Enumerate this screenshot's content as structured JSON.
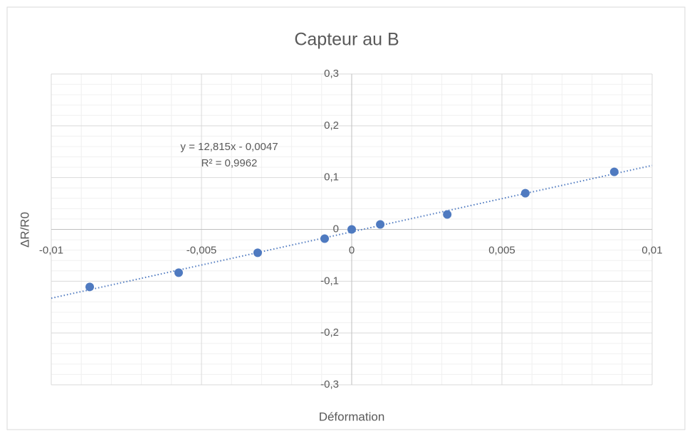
{
  "chart_data": {
    "type": "scatter",
    "title": "Capteur au B",
    "x_label": "Déformation",
    "y_label": "ΔR/R0",
    "x": [
      -0.00872,
      -0.00576,
      -0.00313,
      -0.0009,
      0,
      0.00095,
      0.00318,
      0.00578,
      0.00874
    ],
    "series": [
      {
        "color": "#4f7ac0",
        "values": [
          -0.111,
          -0.0836,
          -0.0452,
          -0.0178,
          0,
          0.0096,
          0.0288,
          0.0699,
          0.111
        ]
      }
    ],
    "trendline": {
      "equation": "y = 12,815x - 0,0047",
      "r_squared": "R² = 0,9962",
      "slope": 12.815,
      "intercept": -0.0047,
      "color": "#4f7ac0"
    },
    "xlim": [
      -0.01,
      0.01
    ],
    "ylim": [
      -0.3,
      0.3
    ],
    "xticks": [
      {
        "value": -0.01,
        "label": "-0,01"
      },
      {
        "value": -0.005,
        "label": "-0,005"
      },
      0,
      {
        "value": 0.005,
        "label": "0,005"
      },
      {
        "value": 0.01,
        "label": "0,01"
      }
    ],
    "yticks": [
      {
        "value": -0.3,
        "label": "-0,3"
      },
      {
        "value": -0.2,
        "label": "-0,2"
      },
      {
        "value": -0.1,
        "label": "-0,1"
      },
      0,
      {
        "value": 0.1,
        "label": "0,1"
      },
      {
        "value": 0.2,
        "label": "0,2"
      },
      {
        "value": 0.3,
        "label": "0,3"
      }
    ],
    "xminorticks": [
      -0.009,
      -0.008,
      -0.007,
      -0.006,
      -0.004,
      -0.003,
      -0.002,
      -0.001,
      0.001,
      0.002,
      0.003,
      0.004,
      0.006,
      0.007,
      0.008,
      0.009
    ],
    "yminorticks": [
      -0.28,
      -0.26,
      -0.24,
      -0.22,
      -0.18,
      -0.16,
      -0.14,
      -0.12,
      -0.08,
      -0.06,
      -0.04,
      -0.02,
      0.02,
      0.04,
      0.06,
      0.08,
      0.12,
      0.14,
      0.16,
      0.18,
      0.22,
      0.24,
      0.26,
      0.28
    ],
    "grid": true
  }
}
